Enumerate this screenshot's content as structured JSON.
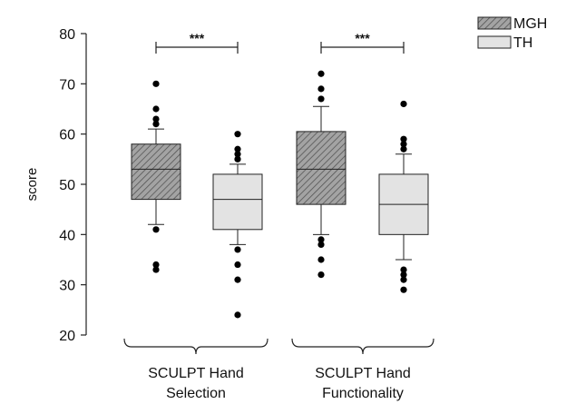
{
  "chart_data": {
    "type": "boxplot",
    "ylabel": "score",
    "ylim": [
      20,
      80
    ],
    "yticks": [
      "20",
      "30",
      "40",
      "50",
      "60",
      "70",
      "80"
    ],
    "groups": [
      {
        "label_line1": "SCULPT Hand",
        "label_line2": "Selection",
        "significance": "***"
      },
      {
        "label_line1": "SCULPT Hand",
        "label_line2": "Functionality",
        "significance": "***"
      }
    ],
    "legend": [
      {
        "name": "MGH",
        "pattern": "hatched",
        "color": "#9a9a9a"
      },
      {
        "name": "TH",
        "pattern": "solid",
        "color": "#e3e3e3"
      }
    ],
    "boxes": [
      {
        "group": 0,
        "series": "MGH",
        "whisker_low": 42,
        "q1": 47,
        "median": 53,
        "q3": 58,
        "whisker_high": 61,
        "outliers": [
          33,
          34,
          41,
          62,
          63,
          65,
          70
        ]
      },
      {
        "group": 0,
        "series": "TH",
        "whisker_low": 38,
        "q1": 41,
        "median": 47,
        "q3": 52,
        "whisker_high": 54,
        "outliers": [
          24,
          31,
          34,
          37,
          55,
          56,
          57,
          60
        ]
      },
      {
        "group": 1,
        "series": "MGH",
        "whisker_low": 40,
        "q1": 46,
        "median": 53,
        "q3": 60.5,
        "whisker_high": 65.5,
        "outliers": [
          32,
          35,
          38,
          39,
          67,
          69,
          72
        ]
      },
      {
        "group": 1,
        "series": "TH",
        "whisker_low": 35,
        "q1": 40,
        "median": 46,
        "q3": 52,
        "whisker_high": 56,
        "outliers": [
          29,
          31,
          32,
          33,
          57,
          58,
          59,
          66
        ]
      }
    ]
  }
}
